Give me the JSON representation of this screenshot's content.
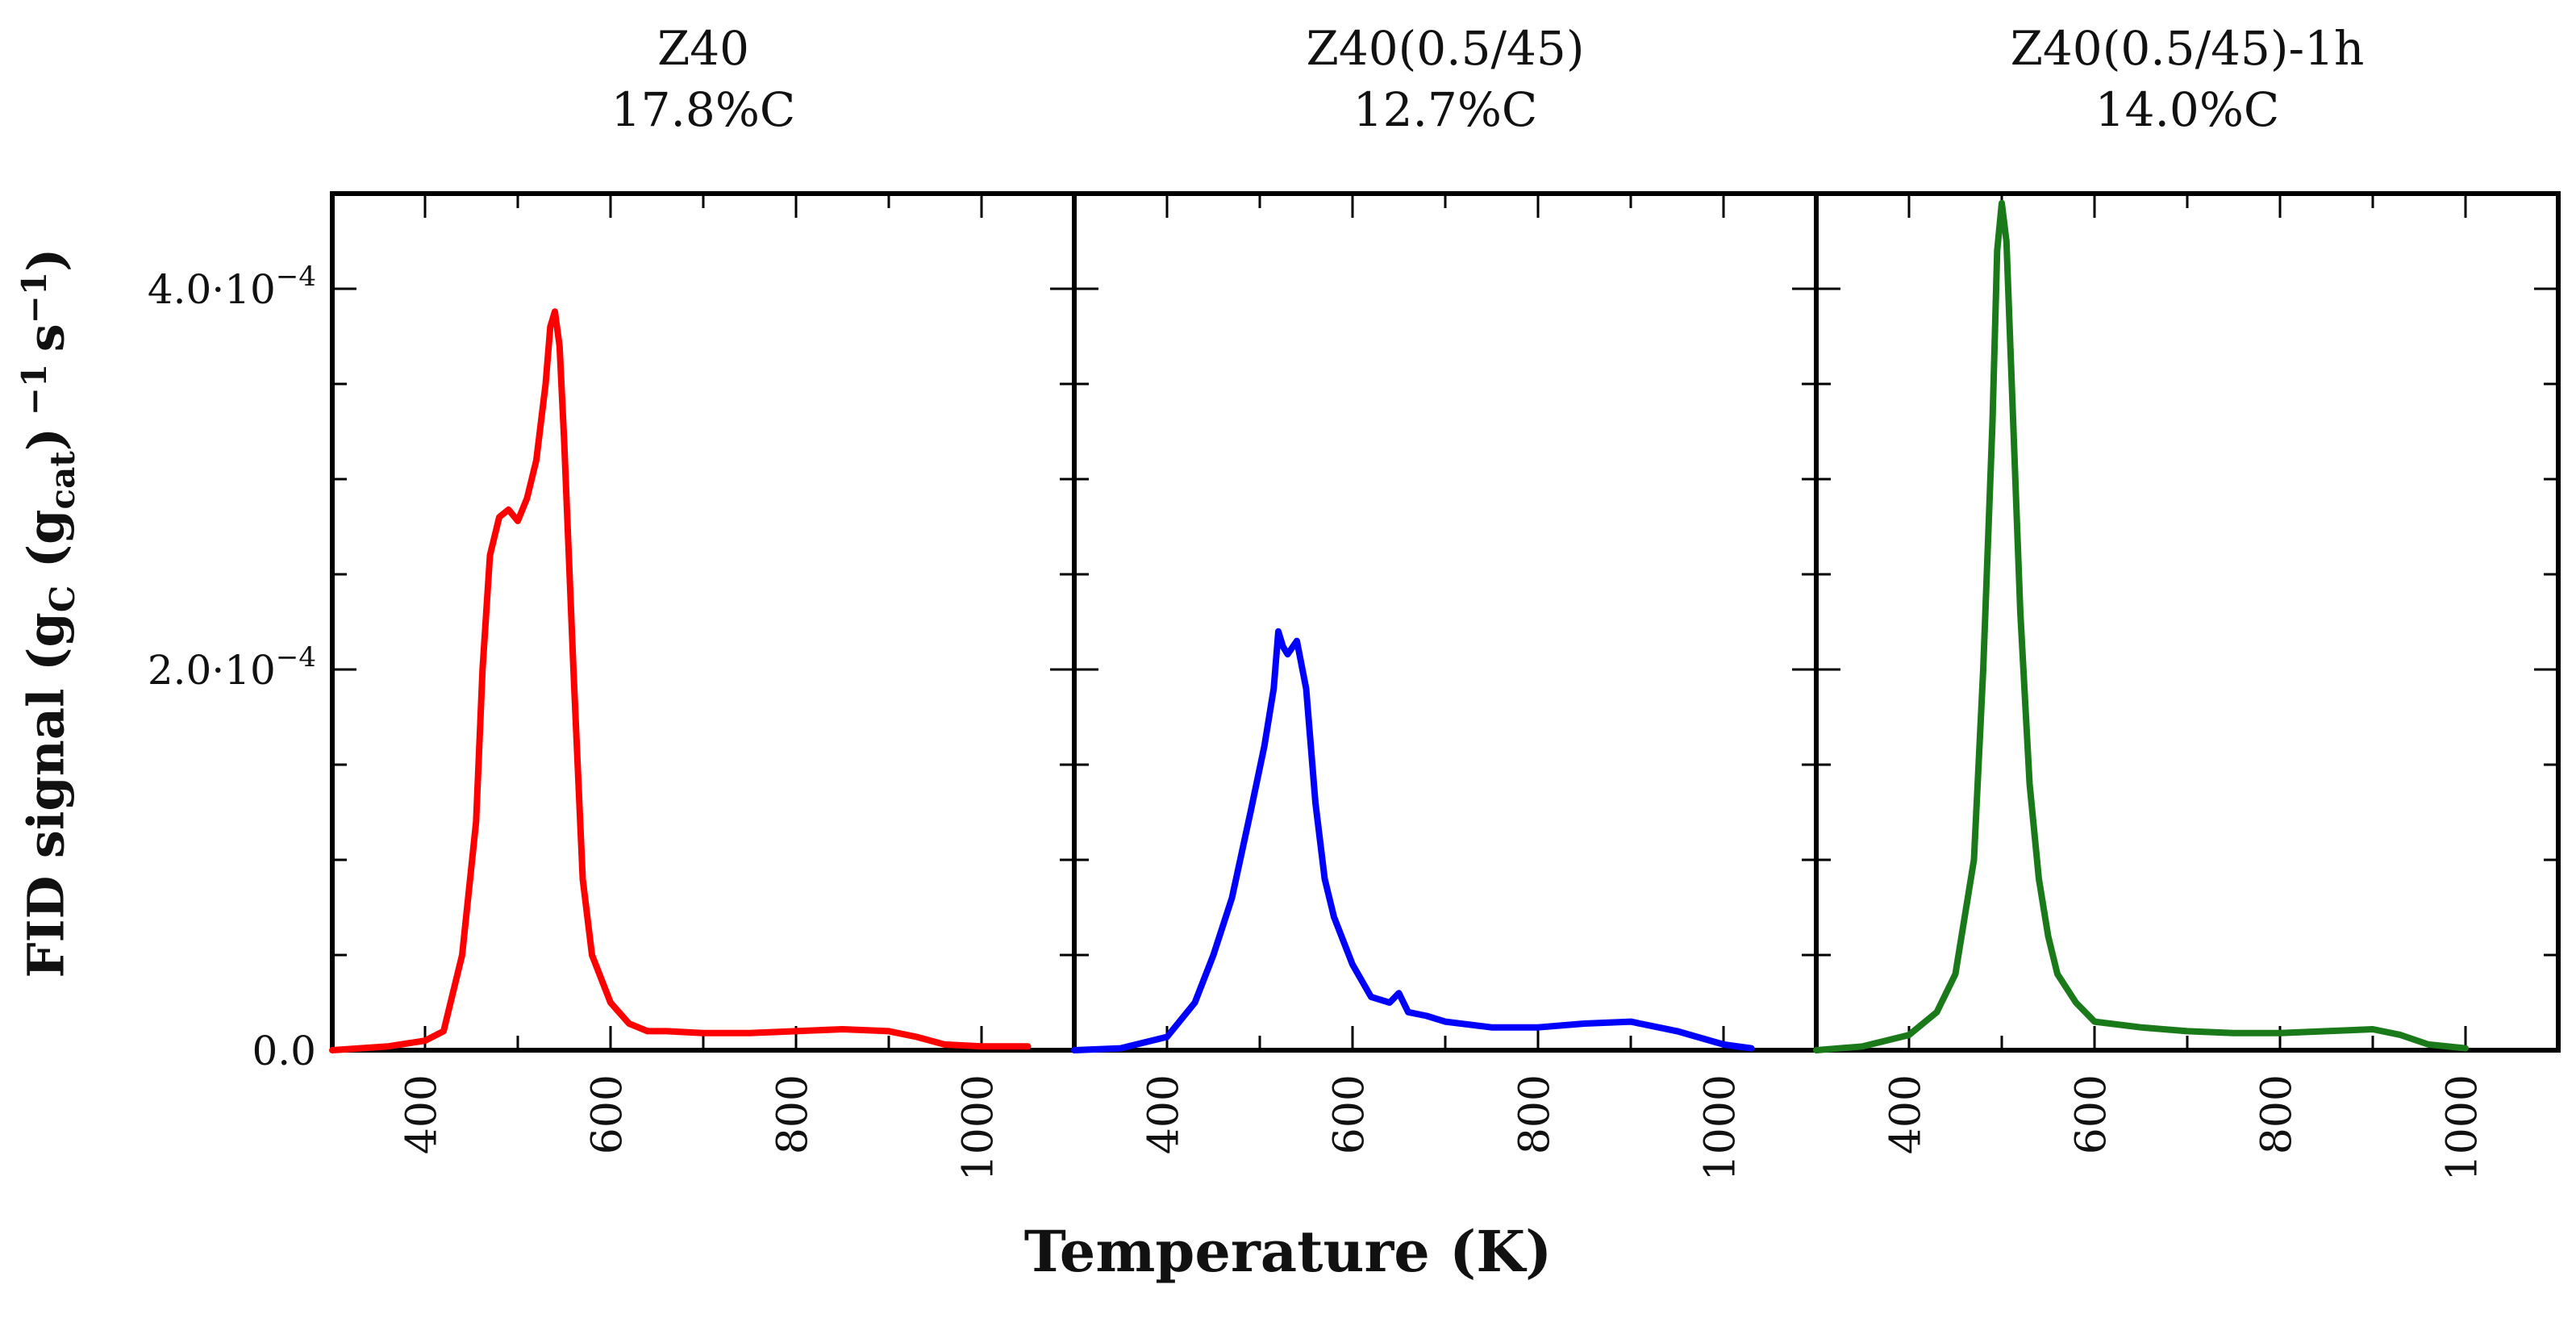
{
  "chart_data": {
    "type": "line",
    "xlabel": "Temperature (K)",
    "ylabel": {
      "prefix": "FID signal (g",
      "sub1": "C",
      "mid": " (g",
      "sub2": "cat",
      "close": ")",
      "sup1": " −1 ",
      "s": "s",
      "sup2": "−1",
      "end": ")"
    },
    "xlim": [
      300,
      1100
    ],
    "ylim": [
      0,
      0.00045
    ],
    "xticks": [
      400,
      600,
      800,
      1000
    ],
    "yticks": [
      {
        "value": 0,
        "label": "0.0"
      },
      {
        "value": 0.0002,
        "label": "2.0·10",
        "exp": "−4"
      },
      {
        "value": 0.0004,
        "label": "4.0·10",
        "exp": "−4"
      }
    ],
    "panels": [
      {
        "name": "Z40",
        "title": "Z40",
        "subtitle": "17.8%C",
        "color": "#ff0000",
        "x": [
          300,
          360,
          400,
          420,
          440,
          455,
          462,
          470,
          480,
          490,
          500,
          510,
          520,
          530,
          535,
          540,
          545,
          550,
          560,
          570,
          580,
          600,
          620,
          640,
          660,
          700,
          750,
          800,
          850,
          900,
          930,
          960,
          1000,
          1050
        ],
        "y": [
          0,
          2e-06,
          5e-06,
          1e-05,
          5e-05,
          0.00012,
          0.0002,
          0.00026,
          0.00028,
          0.000284,
          0.000278,
          0.00029,
          0.00031,
          0.00035,
          0.00038,
          0.000388,
          0.00037,
          0.00032,
          0.0002,
          9e-05,
          5e-05,
          2.5e-05,
          1.4e-05,
          1e-05,
          1e-05,
          9e-06,
          9e-06,
          1e-05,
          1.1e-05,
          1e-05,
          7e-06,
          3e-06,
          2e-06,
          2e-06
        ]
      },
      {
        "name": "Z40(0.5/45)",
        "title": "Z40(0.5/45)",
        "subtitle": "12.7%C",
        "color": "#0000ff",
        "x": [
          300,
          350,
          400,
          430,
          450,
          470,
          490,
          505,
          515,
          520,
          525,
          530,
          540,
          550,
          560,
          570,
          580,
          600,
          620,
          640,
          650,
          660,
          680,
          700,
          750,
          800,
          850,
          900,
          950,
          1000,
          1030
        ],
        "y": [
          0,
          1e-06,
          7e-06,
          2.5e-05,
          5e-05,
          8e-05,
          0.000125,
          0.00016,
          0.00019,
          0.00022,
          0.000212,
          0.000208,
          0.000215,
          0.00019,
          0.00013,
          9e-05,
          7e-05,
          4.5e-05,
          2.8e-05,
          2.5e-05,
          3e-05,
          2e-05,
          1.8e-05,
          1.5e-05,
          1.2e-05,
          1.2e-05,
          1.4e-05,
          1.5e-05,
          1e-05,
          3e-06,
          1e-06
        ]
      },
      {
        "name": "Z40(0.5/45)-1h",
        "title": "Z40(0.5/45)-1h",
        "subtitle": "14.0%C",
        "color": "#1a7a1a",
        "x": [
          300,
          350,
          400,
          430,
          450,
          470,
          480,
          490,
          495,
          500,
          505,
          510,
          520,
          530,
          540,
          550,
          560,
          580,
          600,
          650,
          700,
          750,
          800,
          850,
          900,
          930,
          960,
          1000
        ],
        "y": [
          0,
          2e-06,
          8e-06,
          2e-05,
          4e-05,
          0.0001,
          0.0002,
          0.00033,
          0.00042,
          0.000445,
          0.000425,
          0.00036,
          0.00023,
          0.00014,
          9e-05,
          6e-05,
          4e-05,
          2.5e-05,
          1.5e-05,
          1.2e-05,
          1e-05,
          9e-06,
          9e-06,
          1e-05,
          1.1e-05,
          8e-06,
          3e-06,
          1e-06
        ]
      }
    ]
  }
}
